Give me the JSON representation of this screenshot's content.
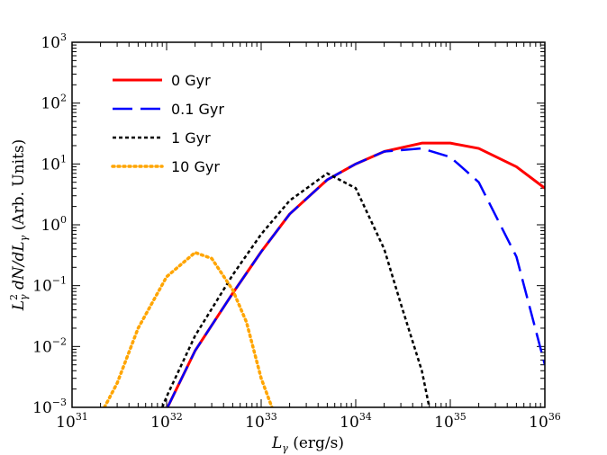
{
  "chart_data": {
    "type": "line",
    "title": "",
    "xlabel": "L_γ (erg/s)",
    "ylabel": "L_γ² dN/dL_γ (Arb. Units)",
    "xscale": "log",
    "yscale": "log",
    "xlim": [
      1e+31,
      1e+36
    ],
    "ylim": [
      0.001,
      1000
    ],
    "x_ticks": [
      {
        "base": "10",
        "exp": "31",
        "value": 1e+31
      },
      {
        "base": "10",
        "exp": "32",
        "value": 1e+32
      },
      {
        "base": "10",
        "exp": "33",
        "value": 1e+33
      },
      {
        "base": "10",
        "exp": "34",
        "value": 1e+34
      },
      {
        "base": "10",
        "exp": "35",
        "value": 1e+35
      },
      {
        "base": "10",
        "exp": "36",
        "value": 1e+36
      }
    ],
    "y_ticks": [
      {
        "base": "10",
        "exp": "−3",
        "value": 0.001
      },
      {
        "base": "10",
        "exp": "−2",
        "value": 0.01
      },
      {
        "base": "10",
        "exp": "−1",
        "value": 0.1
      },
      {
        "base": "10",
        "exp": "0",
        "value": 1
      },
      {
        "base": "10",
        "exp": "1",
        "value": 10
      },
      {
        "base": "10",
        "exp": "2",
        "value": 100
      },
      {
        "base": "10",
        "exp": "3",
        "value": 1000
      }
    ],
    "legend_position": "top-left",
    "series": [
      {
        "name": "0 Gyr",
        "color": "#ff0000",
        "style": "solid",
        "x": [
          1e+32,
          2e+32,
          5e+32,
          1e+33,
          2e+33,
          5e+33,
          1e+34,
          2e+34,
          5e+34,
          1e+35,
          2e+35,
          5e+35,
          1e+36
        ],
        "y": [
          0.00093,
          0.0085,
          0.075,
          0.36,
          1.5,
          5.5,
          10,
          16,
          22,
          22,
          18,
          9,
          4
        ]
      },
      {
        "name": "0.1 Gyr",
        "color": "#0000ff",
        "style": "dashed",
        "x": [
          1e+32,
          2e+32,
          5e+32,
          1e+33,
          2e+33,
          5e+33,
          1e+34,
          2e+34,
          5e+34,
          1e+35,
          2e+35,
          5e+35,
          1e+36
        ],
        "y": [
          0.00093,
          0.0085,
          0.075,
          0.36,
          1.5,
          5.5,
          10,
          16,
          18,
          13,
          5,
          0.3,
          0.005
        ]
      },
      {
        "name": "1 Gyr",
        "color": "#000000",
        "style": "dotted",
        "x": [
          9e+31,
          1e+32,
          2e+32,
          5e+32,
          1e+33,
          2e+33,
          5e+33,
          1e+34,
          2e+34,
          3e+34,
          5e+34,
          6e+34
        ],
        "y": [
          0.001,
          0.0015,
          0.015,
          0.15,
          0.7,
          2.5,
          7,
          4,
          0.4,
          0.05,
          0.004,
          0.001
        ]
      },
      {
        "name": "10 Gyr",
        "color": "#ffa500",
        "style": "thick-dotted",
        "x": [
          2.2e+31,
          3e+31,
          5e+31,
          1e+32,
          2e+32,
          3e+32,
          5e+32,
          7e+32,
          1e+33,
          1.3e+33
        ],
        "y": [
          0.001,
          0.0025,
          0.02,
          0.14,
          0.35,
          0.28,
          0.085,
          0.025,
          0.003,
          0.001
        ]
      }
    ]
  }
}
